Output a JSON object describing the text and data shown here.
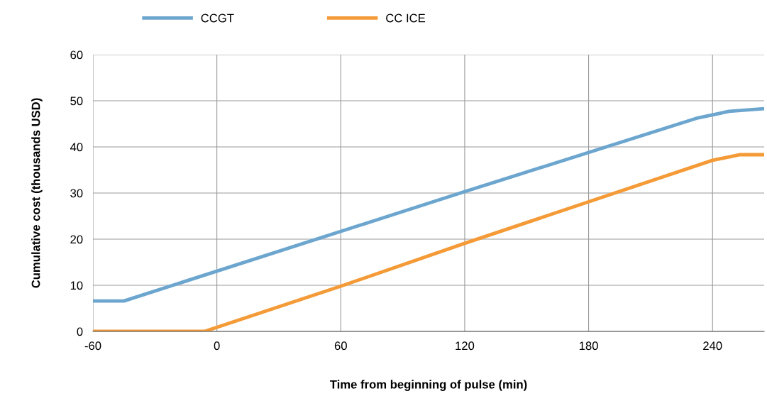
{
  "chart_data": {
    "type": "line",
    "xlabel": "Time from beginning of pulse (min)",
    "ylabel": "Cumulative cost (thousands USD)",
    "xlim": [
      -60,
      265
    ],
    "ylim": [
      0,
      60
    ],
    "xticks": [
      -60,
      0,
      60,
      120,
      180,
      240
    ],
    "yticks": [
      0,
      10,
      20,
      30,
      40,
      50,
      60
    ],
    "grid": true,
    "legend": "top left",
    "marker": "none",
    "line_style": "solid",
    "series": [
      {
        "name": "CCGT",
        "color": "#6ca6cf",
        "x": [
          -60,
          -45,
          120,
          233,
          248,
          265
        ],
        "values": [
          6.6,
          6.6,
          30.3,
          46.3,
          47.7,
          48.3
        ]
      },
      {
        "name": "CC ICE",
        "color": "#f49b38",
        "x": [
          -60,
          -6,
          60,
          120,
          240,
          253,
          265
        ],
        "values": [
          0,
          0,
          9.8,
          19.1,
          37.1,
          38.3,
          38.3
        ]
      }
    ]
  }
}
